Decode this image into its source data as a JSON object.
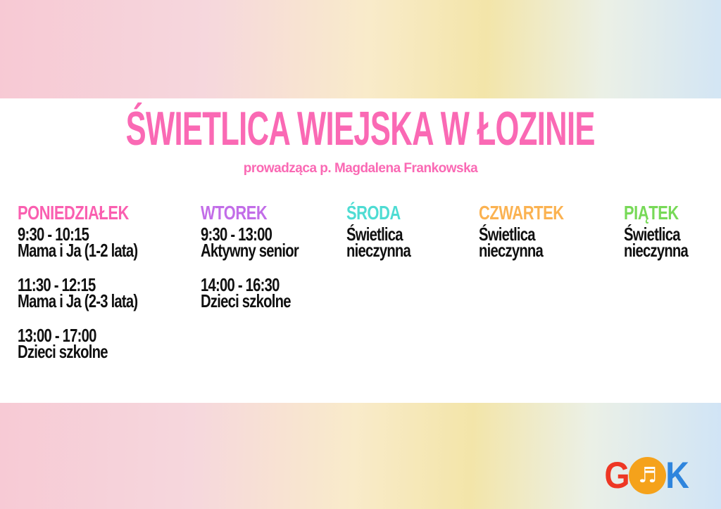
{
  "page": {
    "title": "ŚWIETLICA WIEJSKA W ŁOZINIE",
    "subtitle": "prowadząca p. Magdalena Frankowska"
  },
  "colors": {
    "title_pink": "#fa69b4",
    "monday_header": "#fa5fb0",
    "tuesday_header": "#c26de8",
    "wednesday_header": "#4edcd3",
    "thursday_header": "#fbb251",
    "friday_header": "#77d957",
    "body_text": "#101010",
    "background_left_pink": "#f7c9d4",
    "background_center_yellow": "#f3e5a9",
    "background_right_blue": "#d0e4f6",
    "content_band": "#ffffff",
    "logo_g_red": "#ee3724",
    "logo_circle_orange": "#f5a21b",
    "logo_k_blue": "#2f85dd"
  },
  "schedule": {
    "days": [
      {
        "label": "PONIEDZIAŁEK",
        "entries": [
          {
            "lines": [
              "9:30 - 10:15",
              "Mama i Ja (1-2 lata)"
            ]
          },
          {
            "lines": [
              "11:30 - 12:15",
              "Mama i Ja (2-3 lata)"
            ]
          },
          {
            "lines": [
              "13:00 - 17:00",
              "Dzieci szkolne"
            ]
          }
        ]
      },
      {
        "label": "WTOREK",
        "entries": [
          {
            "lines": [
              "9:30 - 13:00",
              "Aktywny senior"
            ]
          },
          {
            "lines": [
              "14:00 - 16:30",
              "Dzieci szkolne"
            ]
          }
        ]
      },
      {
        "label": "ŚRODA",
        "entries": [
          {
            "lines": [
              "Świetlica",
              "nieczynna"
            ]
          }
        ]
      },
      {
        "label": "CZWARTEK",
        "entries": [
          {
            "lines": [
              "Świetlica",
              "nieczynna"
            ]
          }
        ]
      },
      {
        "label": "PIĄTEK",
        "entries": [
          {
            "lines": [
              "Świetlica",
              "nieczynna"
            ]
          }
        ]
      }
    ]
  },
  "logo": {
    "letter_g": "G",
    "letter_k": "K",
    "note_glyph": "♬",
    "icon": "music-and-mask-icon"
  }
}
